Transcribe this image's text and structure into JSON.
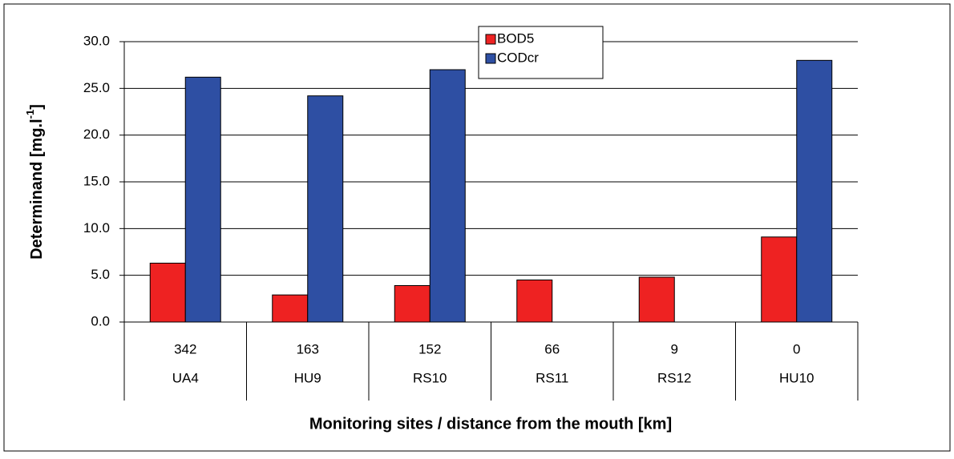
{
  "chart_data": {
    "type": "bar",
    "y_label": {
      "main": "Determinand [mg.l",
      "sup": "-1",
      "end": "]"
    },
    "x_label": "Monitoring sites / distance from the mouth [km]",
    "categories": [
      "UA4",
      "HU9",
      "RS10",
      "RS11",
      "RS12",
      "HU10"
    ],
    "distances": [
      "342",
      "163",
      "152",
      "66",
      "9",
      "0"
    ],
    "series": [
      {
        "name": "BOD5",
        "color": "#ee2222",
        "values": [
          6.3,
          2.9,
          3.9,
          4.5,
          4.8,
          9.1
        ]
      },
      {
        "name": "CODcr",
        "color": "#2e4fa3",
        "values": [
          26.2,
          24.2,
          27.0,
          null,
          null,
          28.0
        ]
      }
    ],
    "ylim": [
      0,
      30
    ],
    "yticks": [
      {
        "value": 0,
        "label": "0.0"
      },
      {
        "value": 5,
        "label": "5.0"
      },
      {
        "value": 10,
        "label": "10.0"
      },
      {
        "value": 15,
        "label": "15.0"
      },
      {
        "value": 20,
        "label": "20.0"
      },
      {
        "value": 25,
        "label": "25.0"
      },
      {
        "value": 30,
        "label": "30.0"
      }
    ],
    "grid": true
  }
}
